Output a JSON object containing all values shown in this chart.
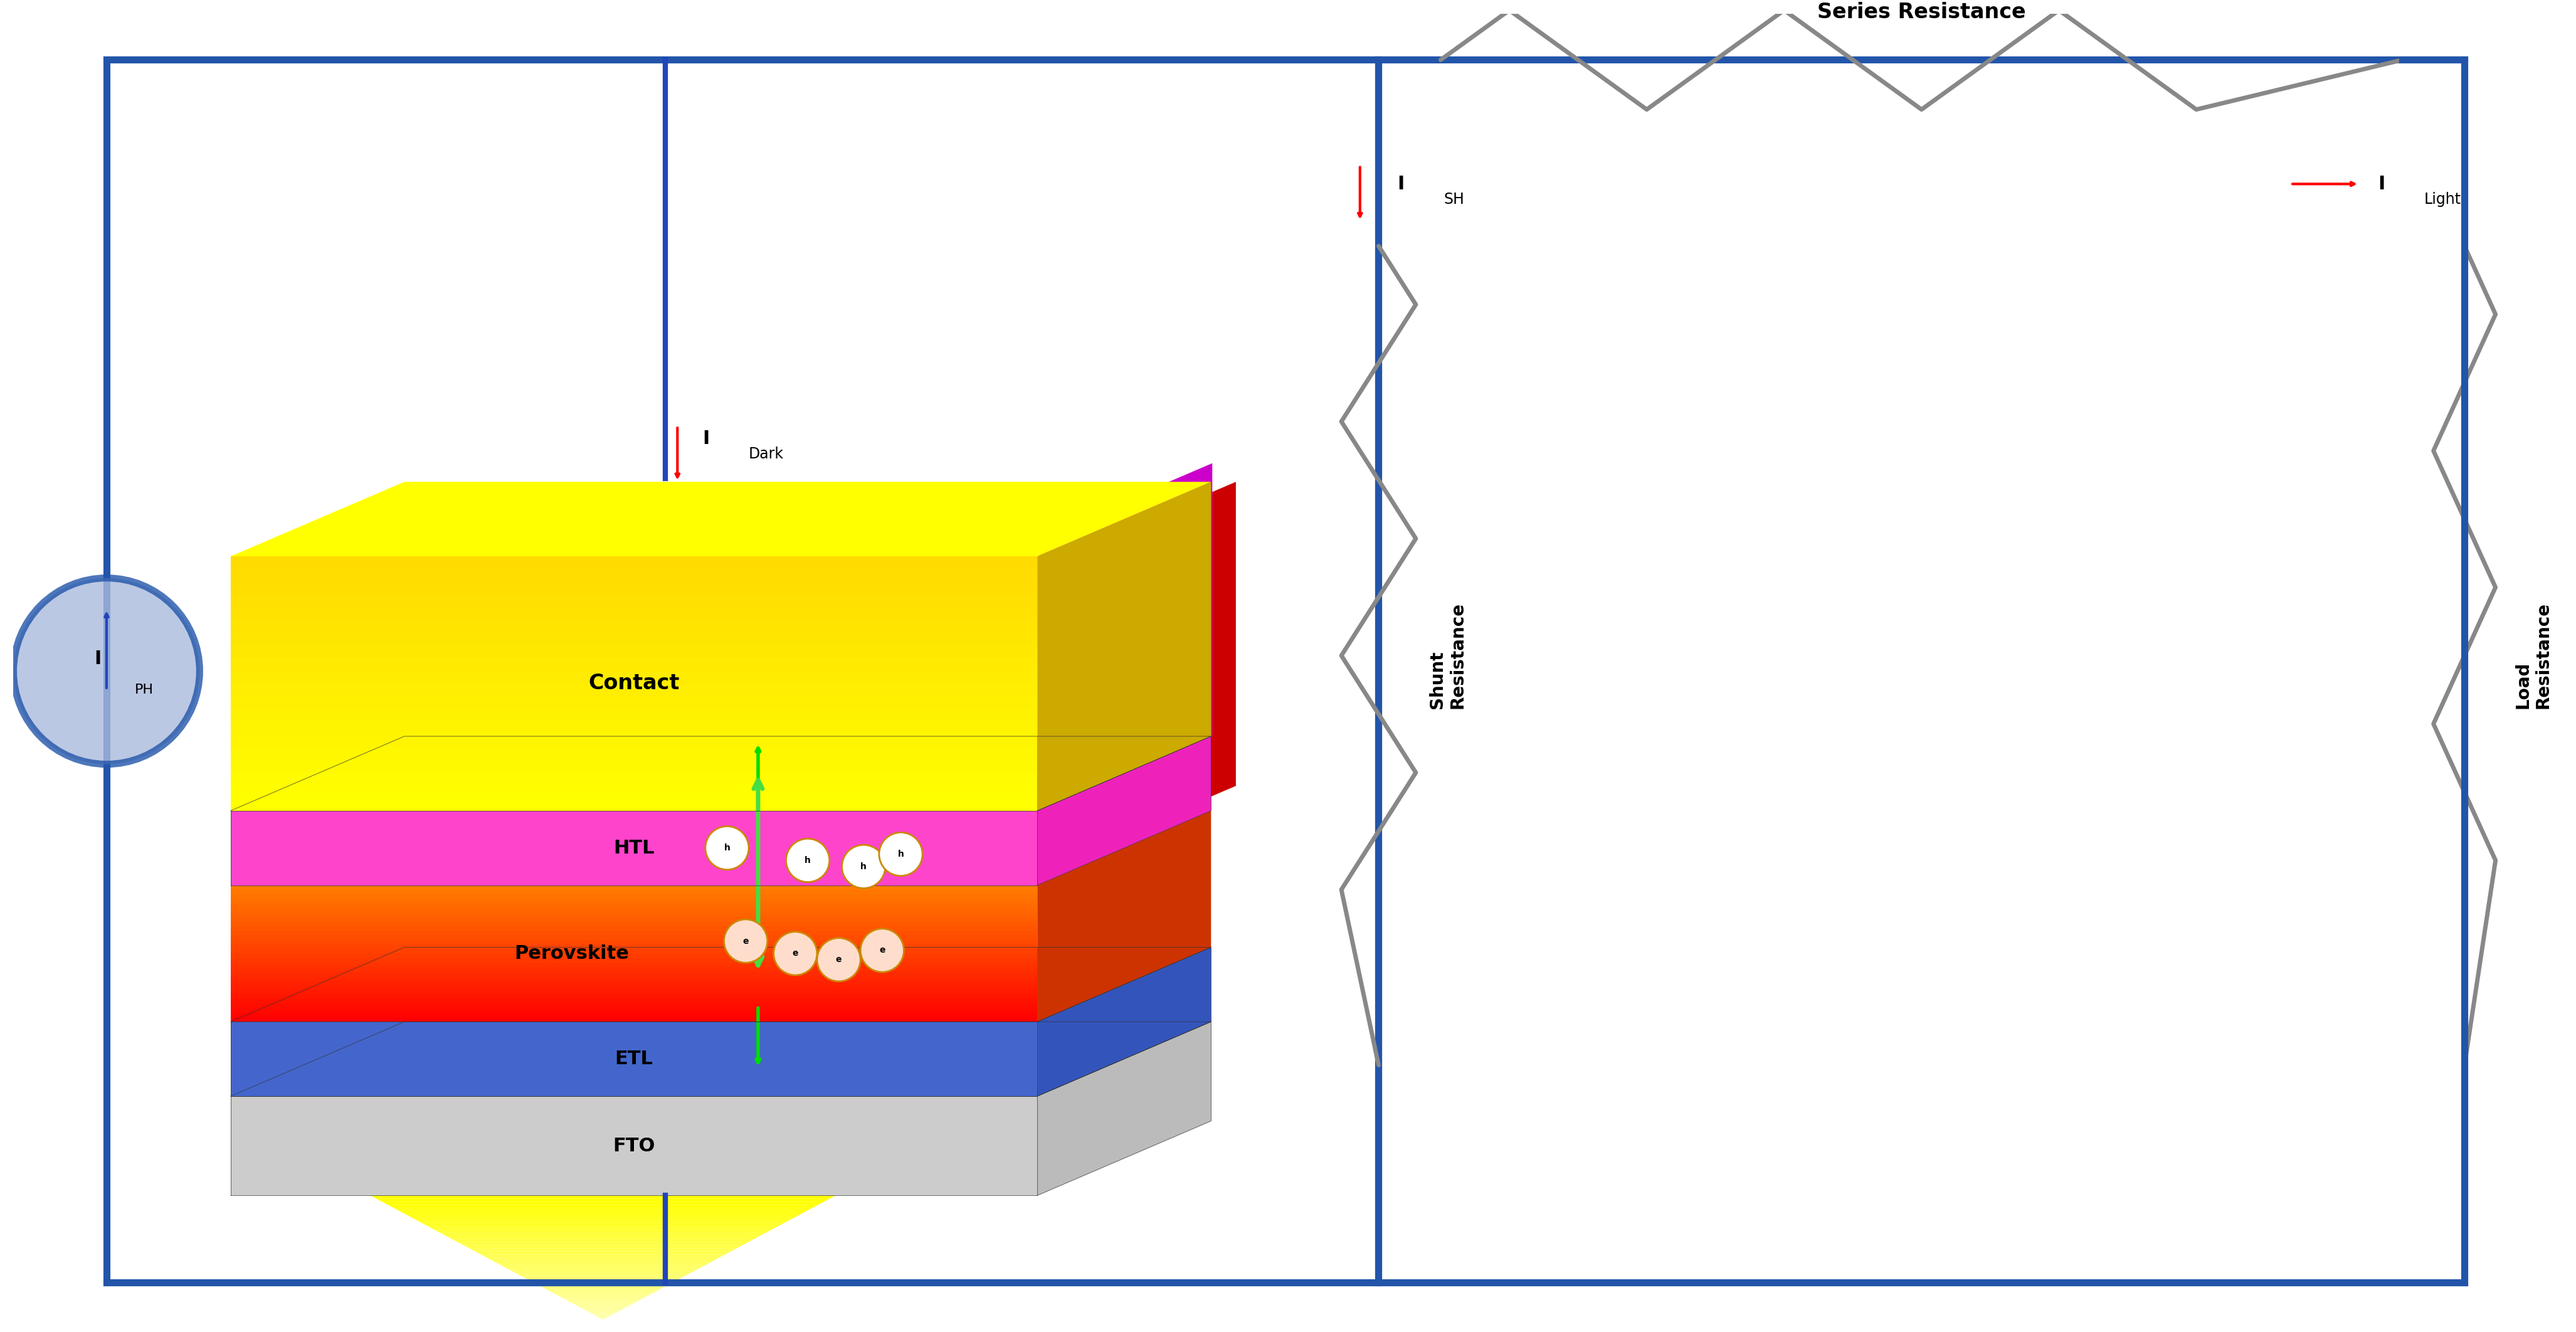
{
  "fig_width": 41.08,
  "fig_height": 21.24,
  "bg_color": "#ffffff",
  "border_color": "#2255aa",
  "border_lw": 8,
  "circuit_color": "#2255aa",
  "circuit_lw": 8,
  "resistor_color": "#888888",
  "layers": [
    {
      "name": "Contact",
      "top_color": "#ffff00",
      "side_color": "#b8860b",
      "right_color": "#d4a000",
      "font_color": "#000000"
    },
    {
      "name": "HTL",
      "top_color": "#ff44cc",
      "side_color": "#cc0088",
      "right_color": "#dd00aa",
      "font_color": "#000000"
    },
    {
      "name": "Perovskite",
      "top_color": "#ff2200",
      "side_color": "#cc0000",
      "right_color": "#cc1100",
      "font_color": "#000000"
    },
    {
      "name": "ETL",
      "top_color": "#3355cc",
      "side_color": "#1133aa",
      "right_color": "#2244bb",
      "font_color": "#000000"
    },
    {
      "name": "FTO",
      "top_color": "#aaaaaa",
      "side_color": "#888888",
      "right_color": "#999999",
      "font_color": "#000000"
    }
  ],
  "title_series": "Series Resistance",
  "label_dark": "I",
  "label_dark_sub": "Dark",
  "label_sh": "I",
  "label_sh_sub": "SH",
  "label_light": "I",
  "label_light_sub": "Light",
  "label_ph": "I",
  "label_ph_sub": "PH",
  "label_shunt_res": "Shunt\nResistance",
  "label_load_res": "Load\nResistance"
}
